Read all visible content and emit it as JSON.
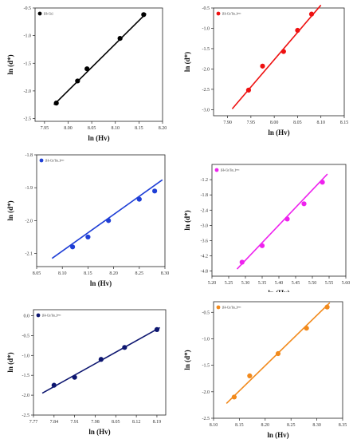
{
  "chart_data": [
    {
      "type": "scatter",
      "xlabel": "ln (Hv)",
      "ylabel": "ln (d*)",
      "xlim": [
        7.93,
        8.2
      ],
      "ylim": [
        -2.55,
        -0.5
      ],
      "xticks": [
        "7.95",
        "8.00",
        "8.05",
        "8.10",
        "8.15",
        "8.20"
      ],
      "yticks": [
        "-0.5",
        "-1.0",
        "-1.5",
        "-2.0",
        "-2.5"
      ],
      "series": [
        {
          "name": "[H+Cit]",
          "color": "#000000",
          "x": [
            7.975,
            8.02,
            8.04,
            8.11,
            8.16
          ],
          "y": [
            -2.22,
            -1.82,
            -1.6,
            -1.05,
            -0.62
          ],
          "fit": [
            [
              7.97,
              -2.25
            ],
            [
              8.165,
              -0.6
            ]
          ]
        }
      ]
    },
    {
      "type": "scatter",
      "xlabel": "ln (Hv)",
      "ylabel": "ln (d*)",
      "xlim": [
        7.87,
        8.15
      ],
      "ylim": [
        -3.15,
        -0.5
      ],
      "xticks": [
        "7.90",
        "7.95",
        "8.00",
        "8.05",
        "8.10",
        "8.15"
      ],
      "yticks": [
        "-0.5",
        "-1.0",
        "-1.5",
        "-2.0",
        "-2.5",
        "-3.0"
      ],
      "series": [
        {
          "name": "[H+Cit/Tm₂]ᴿᴹᴱ",
          "color": "#ee1111",
          "x": [
            7.945,
            7.975,
            8.02,
            8.05,
            8.08
          ],
          "y": [
            -2.52,
            -1.93,
            -1.57,
            -1.05,
            -0.65
          ],
          "fit": [
            [
              7.91,
              -2.98
            ],
            [
              8.1,
              -0.43
            ]
          ]
        }
      ]
    },
    {
      "type": "scatter",
      "xlabel": "ln (Hv)",
      "ylabel": "ln (d*)",
      "xlim": [
        8.05,
        8.3
      ],
      "ylim": [
        -2.14,
        -1.8
      ],
      "xticks": [
        "8.05",
        "8.10",
        "8.15",
        "8.20",
        "8.25",
        "8.30"
      ],
      "yticks": [
        "-1.8",
        "-1.9",
        "-2.0",
        "-2.1"
      ],
      "series": [
        {
          "name": "[H+Cit/Tm₂]ᴿᴹᴱ",
          "color": "#1f3fd6",
          "x": [
            8.12,
            8.15,
            8.19,
            8.25,
            8.28
          ],
          "y": [
            -2.08,
            -2.05,
            -2.0,
            -1.935,
            -1.91
          ],
          "fit": [
            [
              8.08,
              -2.115
            ],
            [
              8.295,
              -1.876
            ]
          ]
        }
      ]
    },
    {
      "type": "scatter",
      "xlabel": "ln (Hv)",
      "ylabel": "ln (d*)",
      "xlim": [
        5.2,
        5.6
      ],
      "ylim": [
        -5.0,
        -0.6
      ],
      "xticks": [
        "5.20",
        "5.25",
        "5.30",
        "5.35",
        "5.40",
        "5.45",
        "5.50",
        "5.55",
        "5.60"
      ],
      "yticks": [
        "-1.2",
        "-1.8",
        "-2.4",
        "-3.0",
        "-3.6",
        "-4.2",
        "-4.8"
      ],
      "series": [
        {
          "name": "[H+Cit/Tm₂]ᴿᴹᴱ",
          "color": "#ee22ee",
          "x": [
            5.29,
            5.35,
            5.425,
            5.475,
            5.53
          ],
          "y": [
            -4.45,
            -3.8,
            -2.75,
            -2.15,
            -1.3
          ],
          "fit": [
            [
              5.275,
              -4.72
            ],
            [
              5.545,
              -0.98
            ]
          ]
        }
      ]
    },
    {
      "type": "scatter",
      "xlabel": "ln (Hv)",
      "ylabel": "ln (d*)",
      "xlim": [
        7.77,
        8.22
      ],
      "ylim": [
        -2.5,
        0.15
      ],
      "xticks": [
        "7.77",
        "7.84",
        "7.91",
        "7.98",
        "8.05",
        "8.12",
        "8.19"
      ],
      "yticks": [
        "0.0",
        "-0.5",
        "-1.0",
        "-1.5",
        "-2.0",
        "-2.5"
      ],
      "series": [
        {
          "name": "[H+Cit/Tm₂]ᴿᴹᴱ",
          "color": "#0d1670",
          "x": [
            7.84,
            7.91,
            8.0,
            8.08,
            8.19
          ],
          "y": [
            -1.75,
            -1.55,
            -1.1,
            -0.8,
            -0.35
          ],
          "fit": [
            [
              7.8,
              -1.95
            ],
            [
              8.2,
              -0.3
            ]
          ]
        }
      ]
    },
    {
      "type": "scatter",
      "xlabel": "ln (Hv)",
      "ylabel": "ln (d*)",
      "xlim": [
        8.1,
        8.35
      ],
      "ylim": [
        -2.5,
        -0.3
      ],
      "xticks": [
        "8.10",
        "8.15",
        "8.20",
        "8.25",
        "8.30",
        "8.35"
      ],
      "yticks": [
        "-0.5",
        "-1.0",
        "-1.5",
        "-2.0",
        "-2.5"
      ],
      "series": [
        {
          "name": "[H+Cit/Tm₂]ᴿᴹᴱ",
          "color": "#f28a1c",
          "x": [
            8.14,
            8.17,
            8.225,
            8.28,
            8.32
          ],
          "y": [
            -2.1,
            -1.7,
            -1.28,
            -0.8,
            -0.4
          ],
          "fit": [
            [
              8.125,
              -2.22
            ],
            [
              8.325,
              -0.32
            ]
          ]
        }
      ]
    }
  ]
}
